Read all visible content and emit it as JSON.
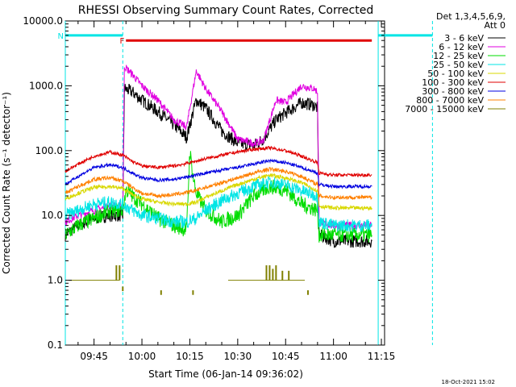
{
  "chart_data": {
    "type": "line",
    "title": "RHESSI Observing Summary Count Rates, Corrected",
    "ylabel": "Corrected Count Rate (s⁻¹ detector⁻¹)",
    "xlabel": "Start Time (06-Jan-14 09:36:02)",
    "xlim": [
      "09:36",
      "11:16"
    ],
    "ylim": [
      0.1,
      10000
    ],
    "yscale": "log",
    "x_ticks": [
      "09:45",
      "10:00",
      "10:15",
      "10:30",
      "10:45",
      "11:00",
      "11:15"
    ],
    "y_ticks": [
      "0.1",
      "1.0",
      "10.0",
      "100.0",
      "1000.0",
      "10000.0"
    ],
    "legend_header": [
      "Det 1,3,4,5,6,9,",
      "Att 0"
    ],
    "legend_position": "right",
    "footer_date": "18-Oct-2021 15:02",
    "flags": [
      {
        "label": "N",
        "color": "#00e5e5",
        "segments": [
          [
            "09:36",
            "09:54"
          ],
          [
            "11:14",
            "11:31"
          ]
        ],
        "level": 6000
      },
      {
        "label": "F",
        "color": "#e00000",
        "segments": [
          [
            "09:55",
            "11:12"
          ]
        ],
        "level": 5000
      }
    ],
    "vlines": [
      {
        "time": "09:36",
        "style": "solid"
      },
      {
        "time": "09:54",
        "style": "dashed"
      },
      {
        "time": "11:14",
        "style": "solid"
      },
      {
        "time": "11:31",
        "style": "dashed"
      }
    ],
    "series": [
      {
        "name": "3 - 6 keV",
        "color": "#000000",
        "noise": 0.1,
        "points": [
          [
            "09:36",
            5
          ],
          [
            "09:40",
            7
          ],
          [
            "09:45",
            9
          ],
          [
            "09:50",
            10
          ],
          [
            "09:54",
            10
          ],
          [
            "09:54.5",
            900
          ],
          [
            "09:57",
            800
          ],
          [
            "10:00",
            600
          ],
          [
            "10:05",
            400
          ],
          [
            "10:10",
            250
          ],
          [
            "10:14",
            160
          ],
          [
            "10:17",
            600
          ],
          [
            "10:20",
            450
          ],
          [
            "10:25",
            200
          ],
          [
            "10:30",
            130
          ],
          [
            "10:35",
            120
          ],
          [
            "10:38",
            150
          ],
          [
            "10:42",
            300
          ],
          [
            "10:45",
            380
          ],
          [
            "10:50",
            550
          ],
          [
            "10:54",
            500
          ],
          [
            "10:55",
            450
          ],
          [
            "10:55.5",
            5
          ],
          [
            "11:00",
            4
          ],
          [
            "11:05",
            4
          ],
          [
            "11:12",
            4
          ]
        ]
      },
      {
        "name": "6 - 12 keV",
        "color": "#e000e0",
        "noise": 0.06,
        "points": [
          [
            "09:36",
            8
          ],
          [
            "09:40",
            10
          ],
          [
            "09:45",
            12
          ],
          [
            "09:50",
            14
          ],
          [
            "09:54",
            14
          ],
          [
            "09:54.5",
            2000
          ],
          [
            "09:57",
            1500
          ],
          [
            "10:00",
            1000
          ],
          [
            "10:05",
            600
          ],
          [
            "10:10",
            300
          ],
          [
            "10:14",
            230
          ],
          [
            "10:17",
            1700
          ],
          [
            "10:20",
            900
          ],
          [
            "10:25",
            400
          ],
          [
            "10:30",
            150
          ],
          [
            "10:35",
            130
          ],
          [
            "10:38",
            140
          ],
          [
            "10:42",
            600
          ],
          [
            "10:45",
            550
          ],
          [
            "10:50",
            1000
          ],
          [
            "10:54",
            900
          ],
          [
            "10:55",
            800
          ],
          [
            "10:55.5",
            8
          ],
          [
            "11:00",
            7
          ],
          [
            "11:05",
            7
          ],
          [
            "11:12",
            7
          ]
        ]
      },
      {
        "name": "12 - 25 keV",
        "color": "#00dd00",
        "noise": 0.12,
        "points": [
          [
            "09:36",
            5
          ],
          [
            "09:40",
            7
          ],
          [
            "09:45",
            9
          ],
          [
            "09:50",
            12
          ],
          [
            "09:54",
            12
          ],
          [
            "09:55",
            25
          ],
          [
            "09:57",
            20
          ],
          [
            "10:00",
            15
          ],
          [
            "10:05",
            9
          ],
          [
            "10:10",
            7
          ],
          [
            "10:14",
            6
          ],
          [
            "10:15",
            100
          ],
          [
            "10:16",
            40
          ],
          [
            "10:17",
            22
          ],
          [
            "10:20",
            12
          ],
          [
            "10:25",
            8
          ],
          [
            "10:30",
            10
          ],
          [
            "10:35",
            20
          ],
          [
            "10:40",
            28
          ],
          [
            "10:45",
            25
          ],
          [
            "10:50",
            15
          ],
          [
            "10:55",
            12
          ],
          [
            "10:55.5",
            5
          ],
          [
            "11:00",
            5
          ],
          [
            "11:05",
            5
          ],
          [
            "11:12",
            5
          ]
        ]
      },
      {
        "name": "25 - 50 keV",
        "color": "#00e5e5",
        "noise": 0.1,
        "points": [
          [
            "09:36",
            10
          ],
          [
            "09:40",
            12
          ],
          [
            "09:45",
            15
          ],
          [
            "09:50",
            16
          ],
          [
            "09:54",
            15
          ],
          [
            "09:57",
            12
          ],
          [
            "10:00",
            10
          ],
          [
            "10:05",
            9
          ],
          [
            "10:10",
            8
          ],
          [
            "10:14",
            8
          ],
          [
            "10:17",
            9
          ],
          [
            "10:20",
            12
          ],
          [
            "10:25",
            17
          ],
          [
            "10:30",
            22
          ],
          [
            "10:35",
            28
          ],
          [
            "10:40",
            33
          ],
          [
            "10:45",
            30
          ],
          [
            "10:50",
            24
          ],
          [
            "10:55",
            20
          ],
          [
            "10:55.5",
            8
          ],
          [
            "11:00",
            7
          ],
          [
            "11:05",
            7
          ],
          [
            "11:12",
            7
          ]
        ]
      },
      {
        "name": "50 - 100 keV",
        "color": "#d8d800",
        "noise": 0.03,
        "points": [
          [
            "09:36",
            18
          ],
          [
            "09:40",
            22
          ],
          [
            "09:45",
            27
          ],
          [
            "09:50",
            28
          ],
          [
            "09:54",
            26
          ],
          [
            "09:57",
            21
          ],
          [
            "10:00",
            18
          ],
          [
            "10:05",
            16
          ],
          [
            "10:10",
            15
          ],
          [
            "10:14",
            15
          ],
          [
            "10:17",
            16
          ],
          [
            "10:20",
            19
          ],
          [
            "10:25",
            24
          ],
          [
            "10:30",
            30
          ],
          [
            "10:35",
            36
          ],
          [
            "10:40",
            42
          ],
          [
            "10:45",
            38
          ],
          [
            "10:50",
            32
          ],
          [
            "10:55",
            24
          ],
          [
            "10:55.5",
            14
          ],
          [
            "11:00",
            13
          ],
          [
            "11:05",
            13
          ],
          [
            "11:12",
            13
          ]
        ]
      },
      {
        "name": "100 - 300 keV",
        "color": "#e00000",
        "noise": 0.025,
        "points": [
          [
            "09:36",
            48
          ],
          [
            "09:40",
            62
          ],
          [
            "09:45",
            82
          ],
          [
            "09:50",
            95
          ],
          [
            "09:54",
            85
          ],
          [
            "09:57",
            68
          ],
          [
            "10:00",
            58
          ],
          [
            "10:05",
            55
          ],
          [
            "10:10",
            58
          ],
          [
            "10:15",
            65
          ],
          [
            "10:20",
            75
          ],
          [
            "10:25",
            85
          ],
          [
            "10:30",
            95
          ],
          [
            "10:35",
            105
          ],
          [
            "10:40",
            110
          ],
          [
            "10:45",
            100
          ],
          [
            "10:50",
            82
          ],
          [
            "10:55",
            65
          ],
          [
            "10:55.5",
            45
          ],
          [
            "11:00",
            42
          ],
          [
            "11:05",
            42
          ],
          [
            "11:12",
            42
          ]
        ]
      },
      {
        "name": "300 - 800 keV",
        "color": "#0000e0",
        "noise": 0.025,
        "points": [
          [
            "09:36",
            30
          ],
          [
            "09:40",
            40
          ],
          [
            "09:45",
            55
          ],
          [
            "09:50",
            60
          ],
          [
            "09:54",
            55
          ],
          [
            "09:57",
            45
          ],
          [
            "10:00",
            38
          ],
          [
            "10:05",
            35
          ],
          [
            "10:10",
            36
          ],
          [
            "10:15",
            40
          ],
          [
            "10:20",
            45
          ],
          [
            "10:25",
            50
          ],
          [
            "10:30",
            55
          ],
          [
            "10:35",
            62
          ],
          [
            "10:40",
            70
          ],
          [
            "10:45",
            65
          ],
          [
            "10:50",
            55
          ],
          [
            "10:55",
            45
          ],
          [
            "10:55.5",
            30
          ],
          [
            "11:00",
            28
          ],
          [
            "11:05",
            28
          ],
          [
            "11:12",
            28
          ]
        ]
      },
      {
        "name": "800 - 7000 keV",
        "color": "#ff8000",
        "noise": 0.03,
        "points": [
          [
            "09:36",
            22
          ],
          [
            "09:40",
            28
          ],
          [
            "09:45",
            36
          ],
          [
            "09:50",
            38
          ],
          [
            "09:54",
            34
          ],
          [
            "09:57",
            27
          ],
          [
            "10:00",
            22
          ],
          [
            "10:05",
            20
          ],
          [
            "10:10",
            21
          ],
          [
            "10:15",
            23
          ],
          [
            "10:20",
            27
          ],
          [
            "10:25",
            32
          ],
          [
            "10:30",
            38
          ],
          [
            "10:35",
            45
          ],
          [
            "10:40",
            52
          ],
          [
            "10:45",
            48
          ],
          [
            "10:50",
            40
          ],
          [
            "10:55",
            30
          ],
          [
            "10:55.5",
            20
          ],
          [
            "11:00",
            19
          ],
          [
            "11:05",
            19
          ],
          [
            "11:12",
            19
          ]
        ]
      },
      {
        "name": "7000 - 15000 keV",
        "color": "#808000",
        "noise": 0,
        "points": []
      }
    ],
    "olive_events": [
      {
        "type": "baseline",
        "from": "09:37",
        "to": "09:53",
        "level": 1.0
      },
      {
        "type": "baseline",
        "from": "10:27",
        "to": "10:51",
        "level": 1.0
      },
      {
        "type": "spike",
        "time": "09:52",
        "level": 1.7
      },
      {
        "type": "spike",
        "time": "09:53",
        "level": 1.7
      },
      {
        "type": "spike",
        "time": "10:39",
        "level": 1.7
      },
      {
        "type": "spike",
        "time": "10:40",
        "level": 1.7
      },
      {
        "type": "spike",
        "time": "10:41",
        "level": 1.5
      },
      {
        "type": "spike",
        "time": "10:42",
        "level": 1.7
      },
      {
        "type": "spike",
        "time": "10:44",
        "level": 1.4
      },
      {
        "type": "spike",
        "time": "10:46",
        "level": 1.4
      },
      {
        "type": "drop",
        "time": "09:54",
        "level": 0.8
      },
      {
        "type": "drop",
        "time": "10:06",
        "level": 0.7
      },
      {
        "type": "drop",
        "time": "10:16",
        "level": 0.7
      },
      {
        "type": "drop",
        "time": "10:52",
        "level": 0.7
      }
    ]
  }
}
